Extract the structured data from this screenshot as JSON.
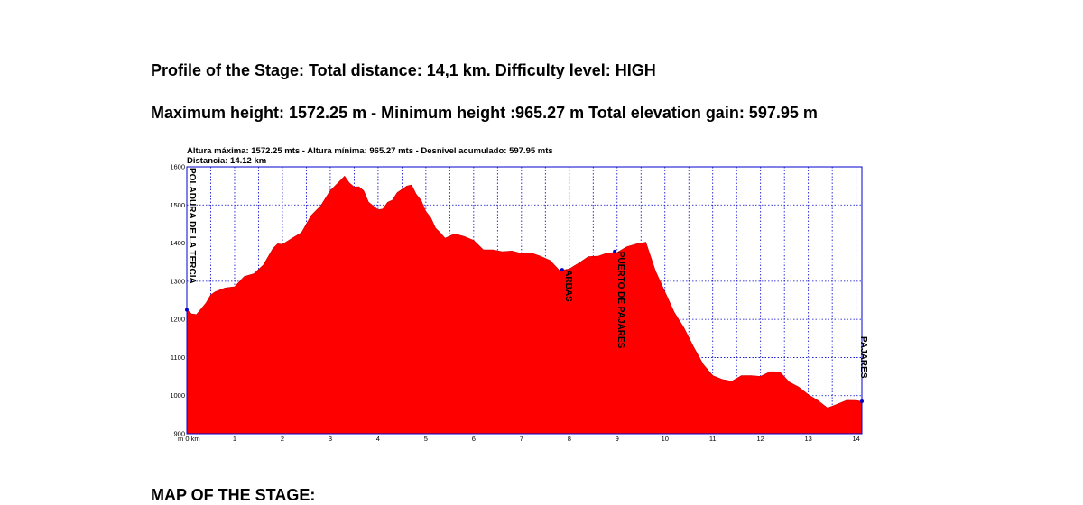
{
  "doc": {
    "heading1": "Profile of the Stage:  Total distance: 14,1 km. Difficulty level:  HIGH",
    "heading2": "Maximum height: 1572.25 m - Minimum height :965.27 m Total elevation gain: 597.95 m",
    "heading3": "MAP OF THE STAGE:"
  },
  "chart_data": {
    "type": "area",
    "title": "Altura máxima: 1572.25 mts - Altura mínima: 965.27 mts - Desnivel acumulado: 597.95 mts",
    "subtitle": "Distancia: 14.12 km",
    "xlabel": "m 0 km",
    "ylabel": "",
    "xlim": [
      0,
      14.12
    ],
    "ylim": [
      900,
      1600
    ],
    "x_ticks": [
      "1",
      "2",
      "3",
      "4",
      "5",
      "6",
      "7",
      "8",
      "9",
      "10",
      "11",
      "12",
      "13",
      "14"
    ],
    "y_ticks": [
      "900",
      "1000",
      "1100",
      "1200",
      "1300",
      "1400",
      "1500",
      "1600"
    ],
    "grid": true,
    "fill_color": "#ff0000",
    "grid_color": "#0000cc",
    "series": [
      {
        "x": [
          0,
          0.1,
          0.2,
          0.3,
          0.4,
          0.5,
          0.6,
          0.8,
          1.0,
          1.2,
          1.4,
          1.6,
          1.8,
          1.9,
          2.0,
          2.2,
          2.4,
          2.6,
          2.8,
          3.0,
          3.2,
          3.3,
          3.4,
          3.5,
          3.6,
          3.7,
          3.8,
          4.0,
          4.1,
          4.2,
          4.3,
          4.4,
          4.6,
          4.7,
          4.8,
          4.9,
          5.0,
          5.1,
          5.2,
          5.3,
          5.4,
          5.6,
          5.8,
          6.0,
          6.2,
          6.4,
          6.6,
          6.8,
          7.0,
          7.2,
          7.4,
          7.6,
          7.8,
          8.0,
          8.2,
          8.4,
          8.6,
          8.8,
          9.0,
          9.2,
          9.4,
          9.6,
          9.8,
          10.0,
          10.2,
          10.4,
          10.6,
          10.8,
          11.0,
          11.2,
          11.4,
          11.6,
          11.8,
          12.0,
          12.2,
          12.4,
          12.6,
          12.8,
          13.0,
          13.2,
          13.4,
          13.6,
          13.8,
          14.0,
          14.12
        ],
        "y": [
          1225,
          1212,
          1215,
          1225,
          1245,
          1262,
          1275,
          1280,
          1288,
          1310,
          1322,
          1340,
          1388,
          1396,
          1399,
          1410,
          1430,
          1470,
          1500,
          1535,
          1565,
          1573,
          1560,
          1545,
          1550,
          1535,
          1510,
          1485,
          1492,
          1505,
          1515,
          1530,
          1552,
          1550,
          1530,
          1510,
          1485,
          1465,
          1442,
          1425,
          1415,
          1422,
          1420,
          1405,
          1385,
          1380,
          1380,
          1377,
          1375,
          1372,
          1368,
          1352,
          1330,
          1330,
          1350,
          1362,
          1368,
          1372,
          1378,
          1388,
          1400,
          1400,
          1330,
          1270,
          1220,
          1175,
          1130,
          1080,
          1055,
          1040,
          1040,
          1050,
          1055,
          1048,
          1065,
          1060,
          1038,
          1020,
          1005,
          985,
          970,
          975,
          990,
          985,
          985
        ]
      }
    ],
    "annotations": [
      {
        "label": "POLADURA DE LA TERCIA",
        "x": 0,
        "y": 1225
      },
      {
        "label": "ARBAS",
        "x": 7.85,
        "y": 1330
      },
      {
        "label": "PUERTO DE PAJARES",
        "x": 8.95,
        "y": 1378
      },
      {
        "label": "PAJARES",
        "x": 14.12,
        "y": 985
      }
    ]
  }
}
